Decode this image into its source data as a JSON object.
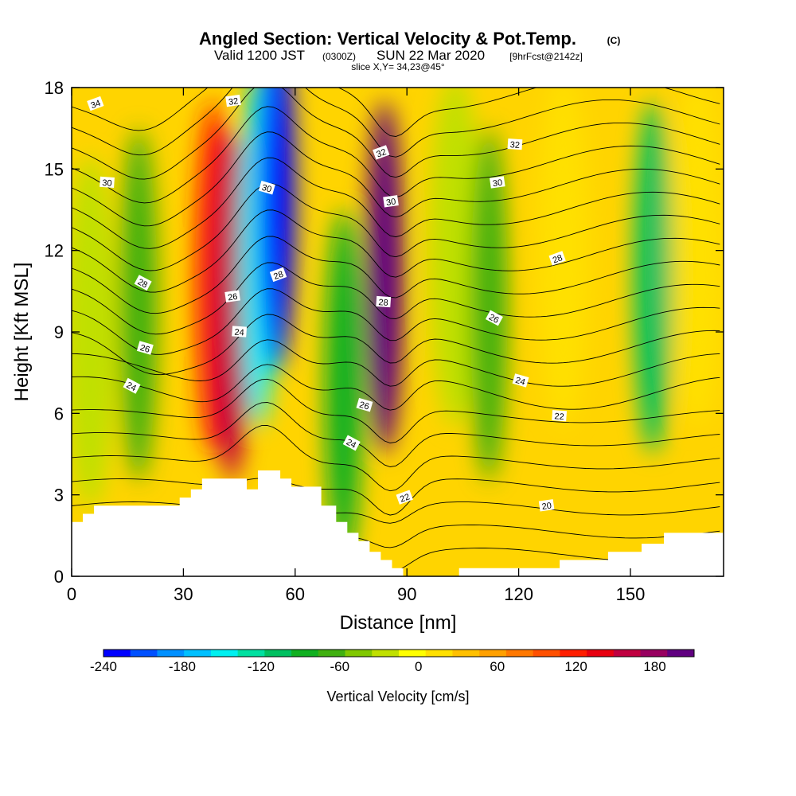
{
  "title": {
    "main": "Angled Section: Vertical Velocity & Pot.Temp.",
    "main_suffix": "(C)",
    "valid_prefix": "Valid 1200 JST",
    "valid_zulu": "(0300Z)",
    "valid_date": "SUN 22 Mar 2020",
    "fcst": "[9hrFcst@2142z]",
    "slice": "slice X,Y= 34,23@45°"
  },
  "chart_data": {
    "type": "heatmap",
    "xlabel": "Distance [nm]",
    "ylabel": "Height [Kft MSL]",
    "xlim": [
      0,
      175
    ],
    "ylim": [
      0,
      18
    ],
    "x_ticks": [
      0,
      30,
      60,
      90,
      120,
      150
    ],
    "y_ticks": [
      0,
      3,
      6,
      9,
      12,
      15,
      18
    ],
    "colorbar": {
      "label": "Vertical Velocity [cm/s]",
      "ticks": [
        -240,
        -180,
        -120,
        -60,
        0,
        60,
        120,
        180
      ],
      "range": [
        -240,
        210
      ],
      "colors": [
        "#0000ff",
        "#0050ff",
        "#0090ff",
        "#00c0ff",
        "#00f0f0",
        "#00e0a0",
        "#00c060",
        "#10b020",
        "#40b010",
        "#80c800",
        "#c0e000",
        "#ffff00",
        "#ffe000",
        "#ffc000",
        "#ffa000",
        "#ff7800",
        "#ff5000",
        "#ff1e00",
        "#e80010",
        "#c00040",
        "#980060",
        "#600080"
      ]
    },
    "velocity_features": [
      {
        "x": 5,
        "z": 9,
        "value": -30
      },
      {
        "x": 18,
        "z": 10,
        "value": -75
      },
      {
        "x": 38,
        "z": 11,
        "value": 110
      },
      {
        "x": 43,
        "z": 10,
        "value": 150
      },
      {
        "x": 50,
        "z": 12,
        "value": -150
      },
      {
        "x": 55,
        "z": 14,
        "value": -230
      },
      {
        "x": 73,
        "z": 7,
        "value": -80
      },
      {
        "x": 84,
        "z": 11,
        "value": 190
      },
      {
        "x": 103,
        "z": 12,
        "value": -20
      },
      {
        "x": 112,
        "z": 10,
        "value": -70
      },
      {
        "x": 132,
        "z": 12,
        "value": 20
      },
      {
        "x": 156,
        "z": 11,
        "value": -110
      },
      {
        "x": 168,
        "z": 12,
        "value": 10
      }
    ],
    "theta_contours": [
      20,
      22,
      24,
      26,
      28,
      30,
      32,
      34
    ],
    "contour_labels": [
      {
        "text": "34",
        "x": 6.4,
        "z": 17.4
      },
      {
        "text": "32",
        "x": 43.4,
        "z": 17.5
      },
      {
        "text": "30",
        "x": 9.5,
        "z": 14.5
      },
      {
        "text": "30",
        "x": 52.4,
        "z": 14.3
      },
      {
        "text": "28",
        "x": 19.1,
        "z": 10.8
      },
      {
        "text": "28",
        "x": 55.5,
        "z": 11.1
      },
      {
        "text": "26",
        "x": 43.2,
        "z": 10.3
      },
      {
        "text": "24",
        "x": 45.0,
        "z": 9.0
      },
      {
        "text": "26",
        "x": 19.7,
        "z": 8.4
      },
      {
        "text": "24",
        "x": 16.1,
        "z": 7.0
      },
      {
        "text": "32",
        "x": 83.1,
        "z": 15.6
      },
      {
        "text": "30",
        "x": 85.7,
        "z": 13.8
      },
      {
        "text": "28",
        "x": 83.7,
        "z": 10.1
      },
      {
        "text": "26",
        "x": 78.6,
        "z": 6.3
      },
      {
        "text": "24",
        "x": 75.1,
        "z": 4.9
      },
      {
        "text": "22",
        "x": 89.4,
        "z": 2.9
      },
      {
        "text": "20",
        "x": 127.5,
        "z": 2.6
      },
      {
        "text": "22",
        "x": 130.9,
        "z": 5.9
      },
      {
        "text": "24",
        "x": 120.5,
        "z": 7.2
      },
      {
        "text": "26",
        "x": 113.4,
        "z": 9.5
      },
      {
        "text": "28",
        "x": 130.4,
        "z": 11.7
      },
      {
        "text": "30",
        "x": 114.3,
        "z": 14.5
      },
      {
        "text": "32",
        "x": 119.0,
        "z": 15.9
      }
    ],
    "terrain": [
      [
        0,
        2.0
      ],
      [
        3,
        2.0
      ],
      [
        3,
        2.3
      ],
      [
        6,
        2.3
      ],
      [
        6,
        2.6
      ],
      [
        29,
        2.6
      ],
      [
        29,
        2.9
      ],
      [
        32,
        2.9
      ],
      [
        32,
        3.2
      ],
      [
        35,
        3.2
      ],
      [
        35,
        3.6
      ],
      [
        47,
        3.6
      ],
      [
        47,
        3.2
      ],
      [
        50,
        3.2
      ],
      [
        50,
        3.9
      ],
      [
        56,
        3.9
      ],
      [
        56,
        3.6
      ],
      [
        59,
        3.6
      ],
      [
        59,
        3.3
      ],
      [
        67,
        3.3
      ],
      [
        67,
        2.6
      ],
      [
        71,
        2.6
      ],
      [
        71,
        2.0
      ],
      [
        74,
        2.0
      ],
      [
        74,
        1.6
      ],
      [
        77,
        1.6
      ],
      [
        77,
        1.3
      ],
      [
        80,
        1.3
      ],
      [
        80,
        0.9
      ],
      [
        83,
        0.9
      ],
      [
        83,
        0.6
      ],
      [
        86,
        0.6
      ],
      [
        86,
        0.3
      ],
      [
        89,
        0.3
      ],
      [
        89,
        0.0
      ],
      [
        104,
        0.0
      ],
      [
        104,
        0.3
      ],
      [
        131,
        0.3
      ],
      [
        131,
        0.6
      ],
      [
        144,
        0.6
      ],
      [
        144,
        0.9
      ],
      [
        153,
        0.9
      ],
      [
        153,
        1.2
      ],
      [
        159,
        1.2
      ],
      [
        159,
        1.6
      ],
      [
        175,
        1.6
      ]
    ]
  }
}
